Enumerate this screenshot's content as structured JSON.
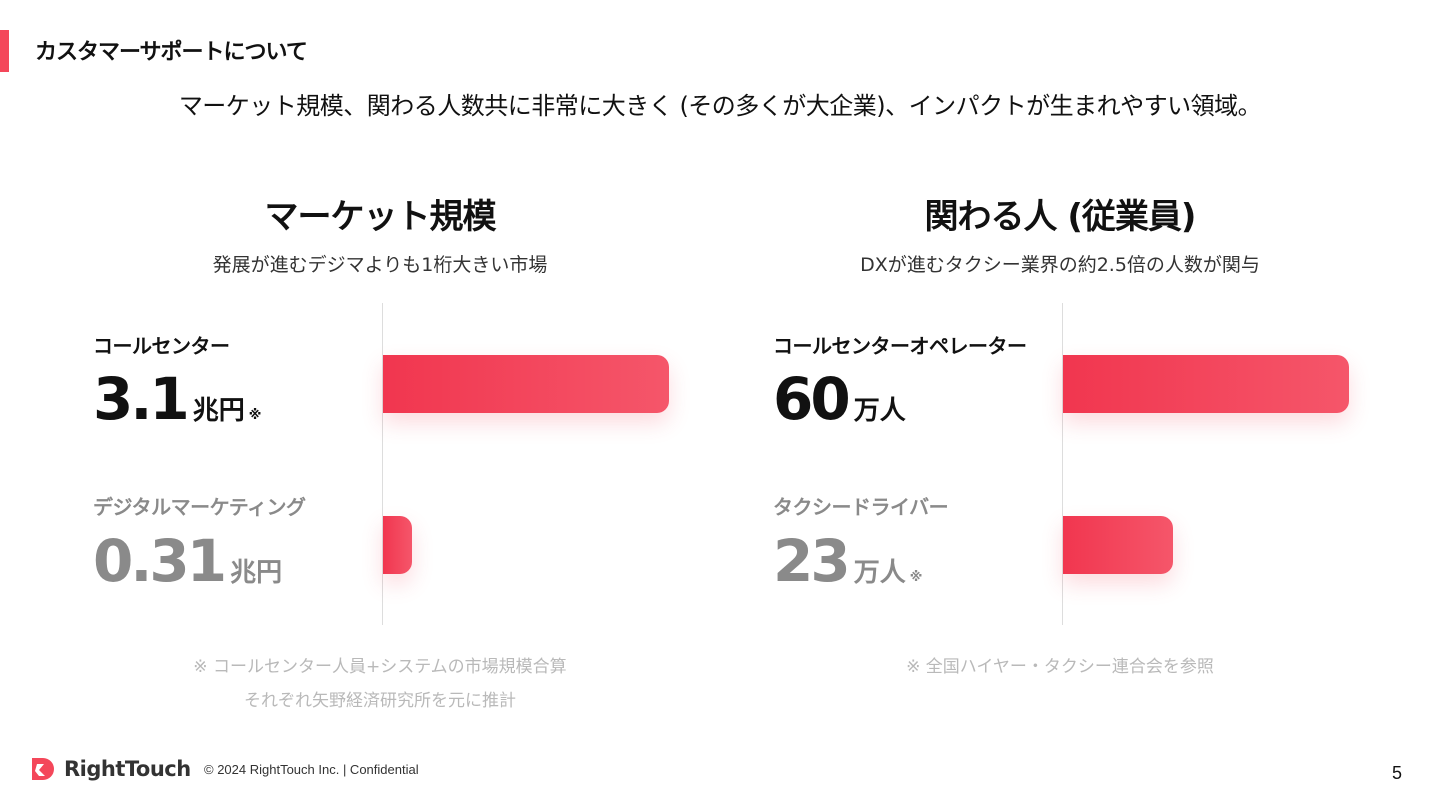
{
  "header": {
    "section_title": "カスタマーサポートについて",
    "headline": "マーケット規模、関わる人数共に非常に大きく (その多くが大企業)、インパクトが生まれやすい領域。"
  },
  "market_panel": {
    "title": "マーケット規模",
    "subtitle": "発展が進むデジマよりも1桁大きい市場",
    "primary": {
      "label": "コールセンター",
      "value": "3.1",
      "unit": "兆円",
      "mark": "※"
    },
    "secondary": {
      "label": "デジタルマーケティング",
      "value": "0.31",
      "unit": "兆円"
    },
    "note_line1": "※ コールセンター人員+システムの市場規模合算",
    "note_line2": "それぞれ矢野経済研究所を元に推計"
  },
  "people_panel": {
    "title": "関わる人 (従業員)",
    "subtitle": "DXが進むタクシー業界の約2.5倍の人数が関与",
    "primary": {
      "label": "コールセンターオペレーター",
      "value": "60",
      "unit": "万人"
    },
    "secondary": {
      "label": "タクシードライバー",
      "value": "23",
      "unit": "万人",
      "mark": "※"
    },
    "note_line1": "※ 全国ハイヤー・タクシー連合会を参照"
  },
  "footer": {
    "logo_text": "RightTouch",
    "copyright": "© 2024 RightTouch Inc.  |  Confidential",
    "page_number": "5"
  },
  "colors": {
    "accent": "#f4475a",
    "bar_start": "#f1364f",
    "bar_end": "#f5566a",
    "muted_text": "#8a8a8a",
    "note_text": "#b9b9b9"
  },
  "icons": {
    "logo": "righttouch-logo-icon"
  }
}
